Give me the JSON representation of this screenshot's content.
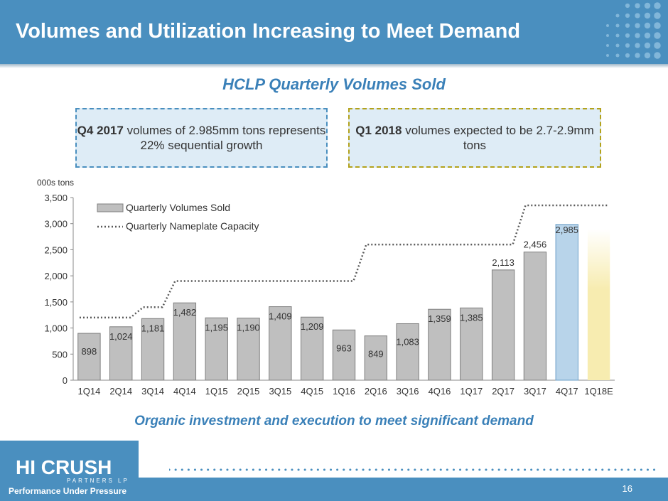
{
  "slide": {
    "title": "Volumes and Utilization Increasing to Meet Demand",
    "subtitle": "HCLP Quarterly Volumes Sold",
    "callout_left": {
      "bold": "Q4 2017",
      "text": " volumes of 2.985mm tons represents 22% sequential growth"
    },
    "callout_right": {
      "bold": "Q1 2018",
      "text": " volumes expected to be 2.7-2.9mm tons"
    },
    "footnote": "Organic investment and execution to meet significant demand",
    "page_number": "16",
    "logo": {
      "main": "HI CRUSH",
      "sub": "PARTNERS LP",
      "tagline": "Performance Under Pressure"
    }
  },
  "colors": {
    "header": "#4a8fbf",
    "bar": "#bfbfbf",
    "bar_highlight": "#b8d4ea",
    "bar_estimate": "#f7ecb0",
    "capacity_line": "#595959",
    "accent_text": "#3a80b8"
  },
  "chart_data": {
    "type": "bar",
    "ylabel": "000s tons",
    "ylim": [
      0,
      3500
    ],
    "yticks": [
      0,
      500,
      1000,
      1500,
      2000,
      2500,
      3000,
      3500
    ],
    "categories": [
      "1Q14",
      "2Q14",
      "3Q14",
      "4Q14",
      "1Q15",
      "2Q15",
      "3Q15",
      "4Q15",
      "1Q16",
      "2Q16",
      "3Q16",
      "4Q16",
      "1Q17",
      "2Q17",
      "3Q17",
      "4Q17",
      "1Q18E"
    ],
    "series": [
      {
        "name": "Quarterly Volumes Sold",
        "type": "bar",
        "values": [
          898,
          1024,
          1181,
          1482,
          1195,
          1190,
          1409,
          1209,
          963,
          849,
          1083,
          1359,
          1385,
          2113,
          2456,
          2985,
          null
        ],
        "labels": [
          "898",
          "1,024",
          "1,181",
          "1,482",
          "1,195",
          "1,190",
          "1,409",
          "1,209",
          "963",
          "849",
          "1,083",
          "1,359",
          "1,385",
          "2,113",
          "2,456",
          "2,985",
          ""
        ],
        "estimate_range": {
          "category": "1Q18E",
          "low": 2700,
          "high": 2900
        }
      },
      {
        "name": "Quarterly Nameplate Capacity",
        "type": "line",
        "style": "dotted",
        "values": [
          1200,
          1200,
          1400,
          1900,
          1900,
          1900,
          1900,
          1900,
          1900,
          2600,
          2600,
          2600,
          2600,
          2600,
          3350,
          3350,
          3350
        ]
      }
    ],
    "legend": "top-left",
    "grid": false
  }
}
